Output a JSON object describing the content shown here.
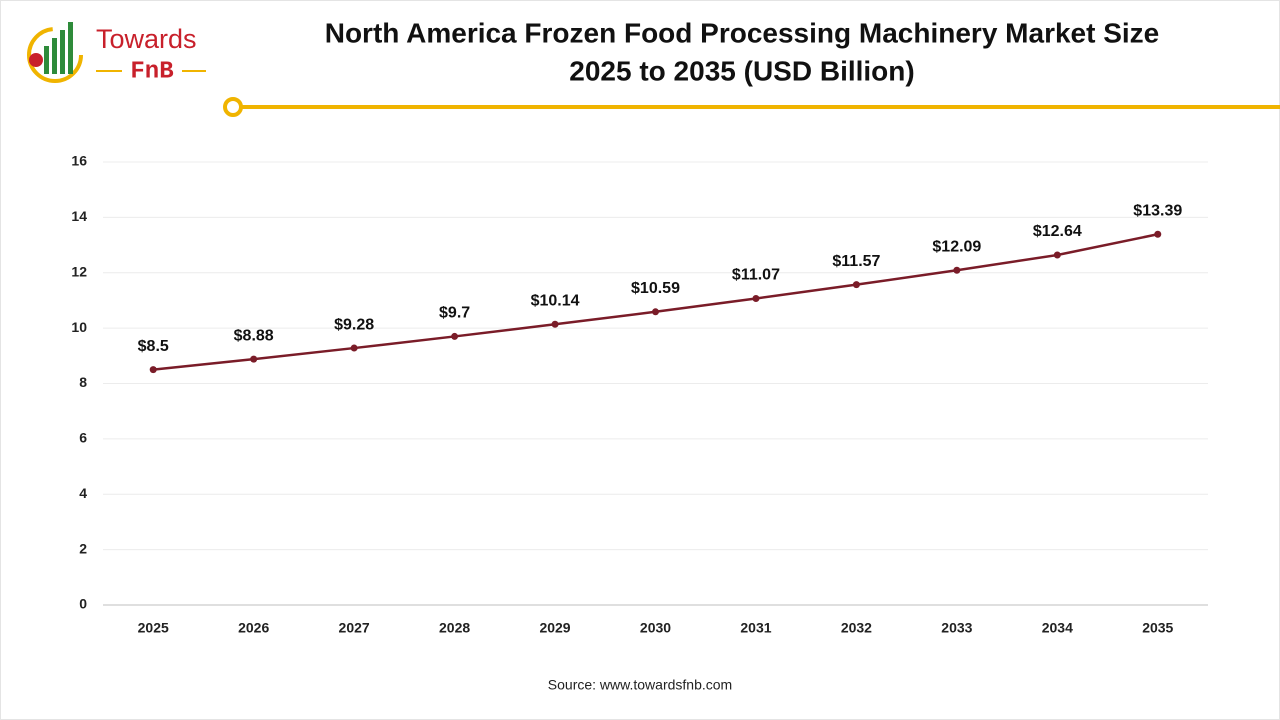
{
  "logo": {
    "name": "Towards",
    "sub": "FnB"
  },
  "chart_data": {
    "type": "line",
    "title": [
      "North America Frozen Food Processing Machinery Market Size",
      "2025 to 2035 (USD Billion)"
    ],
    "categories": [
      "2025",
      "2026",
      "2027",
      "2028",
      "2029",
      "2030",
      "2031",
      "2032",
      "2033",
      "2034",
      "2035"
    ],
    "values": [
      8.5,
      8.88,
      9.28,
      9.7,
      10.14,
      10.59,
      11.07,
      11.57,
      12.09,
      12.64,
      13.39
    ],
    "value_labels": [
      "$8.5",
      "$8.88",
      "$9.28",
      "$9.7",
      "$10.14",
      "$10.59",
      "$11.07",
      "$11.57",
      "$12.09",
      "$12.64",
      "$13.39"
    ],
    "color": "#7a1c28",
    "ylim": [
      0,
      16
    ],
    "yticks": [
      0,
      2,
      4,
      6,
      8,
      10,
      12,
      14,
      16
    ],
    "grid": true
  },
  "source": "Source: www.towardsfnb.com"
}
